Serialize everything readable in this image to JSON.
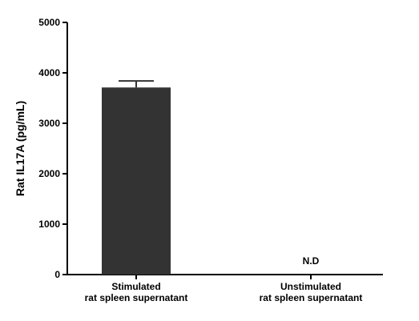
{
  "chart_data": {
    "type": "bar",
    "ylabel": "Rat IL17A (pg/mL)",
    "xlabel": "",
    "ylim": [
      0,
      5000
    ],
    "yticks": [
      "0",
      "1000",
      "2000",
      "3000",
      "4000",
      "5000"
    ],
    "categories": [
      [
        "Stimulated",
        "rat spleen supernatant"
      ],
      [
        "Unstimulated",
        "rat spleen supernatant"
      ]
    ],
    "values": [
      3710,
      null
    ],
    "error_bars": [
      130,
      null
    ],
    "annotations": [
      {
        "category_index": 1,
        "text": "N.D"
      }
    ],
    "bar_color": "#333333",
    "grid": false,
    "legend": "none"
  }
}
